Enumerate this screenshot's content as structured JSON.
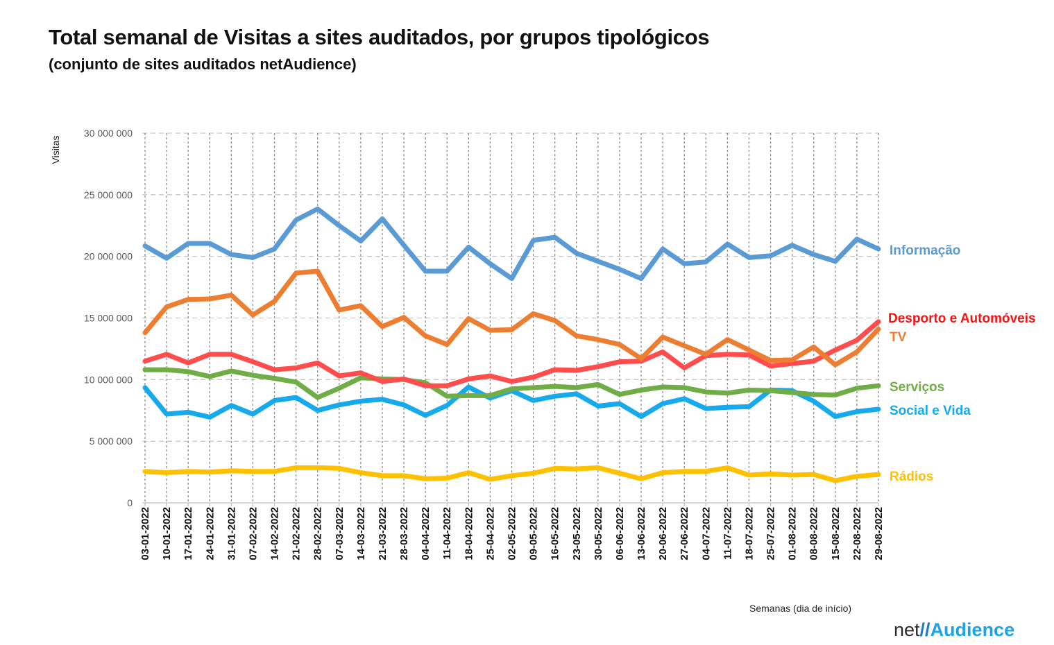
{
  "header": {
    "title": "Total semanal de Visitas a sites auditados, por grupos tipológicos",
    "subtitle": "(conjunto de sites auditados netAudience)"
  },
  "footer": {
    "xaxis_title": "Semanas  (dia de início)",
    "logo_net": "net",
    "logo_slash": "//",
    "logo_audience": "Audience"
  },
  "chart_data": {
    "type": "line",
    "title": "Total semanal de Visitas a sites auditados, por grupos tipológicos",
    "subtitle": "(conjunto de sites auditados netAudience)",
    "xlabel": "Semanas  (dia de início)",
    "ylabel": "Visitas",
    "ylim": [
      0,
      30000000
    ],
    "yticks": [
      0,
      5000000,
      10000000,
      15000000,
      20000000,
      25000000,
      30000000
    ],
    "ytick_labels": [
      "0",
      "5 000 000",
      "10 000 000",
      "15 000 000",
      "20 000 000",
      "25 000 000",
      "30 000 000"
    ],
    "grid": true,
    "legend_position": "right (labels at line ends)",
    "categories": [
      "03-01-2022",
      "10-01-2022",
      "17-01-2022",
      "24-01-2022",
      "31-01-2022",
      "07-02-2022",
      "14-02-2022",
      "21-02-2022",
      "28-02-2022",
      "07-03-2022",
      "14-03-2022",
      "21-03-2022",
      "28-03-2022",
      "04-04-2022",
      "11-04-2022",
      "18-04-2022",
      "25-04-2022",
      "02-05-2022",
      "09-05-2022",
      "16-05-2022",
      "23-05-2022",
      "30-05-2022",
      "06-06-2022",
      "13-06-2022",
      "20-06-2022",
      "27-06-2022",
      "04-07-2022",
      "11-07-2022",
      "18-07-2022",
      "25-07-2022",
      "01-08-2022",
      "08-08-2022",
      "15-08-2022",
      "22-08-2022",
      "29-08-2022"
    ],
    "series": [
      {
        "name": "Informação",
        "color": "#5b9bd5",
        "values": [
          20850000,
          19850000,
          21050000,
          21050000,
          20150000,
          19900000,
          20600000,
          22950000,
          23850000,
          22500000,
          21250000,
          23050000,
          20900000,
          18800000,
          18800000,
          20750000,
          19400000,
          18200000,
          21300000,
          21550000,
          20250000,
          19600000,
          18950000,
          18200000,
          20600000,
          19400000,
          19550000,
          21000000,
          19900000,
          20050000,
          20900000,
          20150000,
          19600000,
          21400000,
          20600000
        ]
      },
      {
        "name": "TV",
        "color": "#ed7d31",
        "values": [
          13800000,
          15900000,
          16500000,
          16550000,
          16850000,
          15250000,
          16350000,
          18650000,
          18800000,
          15650000,
          16000000,
          14300000,
          15050000,
          13550000,
          12850000,
          14950000,
          14000000,
          14050000,
          15350000,
          14800000,
          13550000,
          13250000,
          12850000,
          11700000,
          13450000,
          12750000,
          12050000,
          13250000,
          12400000,
          11550000,
          11600000,
          12650000,
          11200000,
          12250000,
          14100000
        ]
      },
      {
        "name": "Desporto e Automóveis",
        "color": "#ff4d4d",
        "values": [
          11500000,
          12050000,
          11350000,
          12050000,
          12050000,
          11450000,
          10800000,
          10950000,
          11350000,
          10300000,
          10550000,
          9850000,
          10050000,
          9500000,
          9500000,
          10050000,
          10300000,
          9850000,
          10200000,
          10800000,
          10750000,
          11050000,
          11450000,
          11500000,
          12250000,
          10950000,
          11950000,
          12050000,
          12000000,
          11100000,
          11300000,
          11500000,
          12400000,
          13200000,
          14700000
        ]
      },
      {
        "name": "Serviços",
        "color": "#70ad47",
        "values": [
          10800000,
          10800000,
          10650000,
          10250000,
          10700000,
          10350000,
          10100000,
          9800000,
          8550000,
          9300000,
          10150000,
          10050000,
          10000000,
          9750000,
          8650000,
          8700000,
          8700000,
          9250000,
          9350000,
          9450000,
          9350000,
          9600000,
          8800000,
          9150000,
          9400000,
          9350000,
          9000000,
          8900000,
          9150000,
          9100000,
          8950000,
          8800000,
          8750000,
          9300000,
          9500000
        ]
      },
      {
        "name": "Social e Vida",
        "color": "#16a9ec",
        "values": [
          9350000,
          7200000,
          7350000,
          6950000,
          7900000,
          7200000,
          8300000,
          8550000,
          7500000,
          7950000,
          8250000,
          8400000,
          7950000,
          7100000,
          7900000,
          9400000,
          8500000,
          9100000,
          8300000,
          8650000,
          8850000,
          7850000,
          8050000,
          7000000,
          8050000,
          8450000,
          7650000,
          7750000,
          7800000,
          9150000,
          9100000,
          8250000,
          7000000,
          7400000,
          7600000
        ]
      },
      {
        "name": "Rádios",
        "color": "#ffc000",
        "values": [
          2550000,
          2450000,
          2550000,
          2500000,
          2600000,
          2550000,
          2550000,
          2850000,
          2850000,
          2800000,
          2450000,
          2200000,
          2200000,
          1950000,
          2000000,
          2450000,
          1900000,
          2200000,
          2400000,
          2800000,
          2750000,
          2850000,
          2400000,
          1950000,
          2450000,
          2550000,
          2550000,
          2850000,
          2250000,
          2350000,
          2250000,
          2300000,
          1800000,
          2150000,
          2300000
        ]
      }
    ],
    "series_labels": [
      {
        "text": "Informação",
        "color": "#5b9bd5"
      },
      {
        "text": "Desporto e Automóveis",
        "color": "#ff1010"
      },
      {
        "text": "TV",
        "color": "#ed7d31"
      },
      {
        "text": "Serviços",
        "color": "#70ad47"
      },
      {
        "text": "Social e Vida",
        "color": "#16a9ec"
      },
      {
        "text": "Rádios",
        "color": "#ffc000"
      }
    ]
  }
}
